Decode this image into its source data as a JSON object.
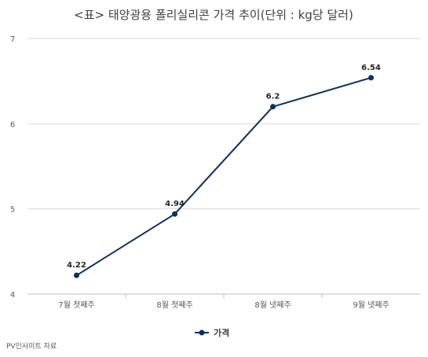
{
  "chart_data": {
    "type": "line",
    "title": "<표> 태양광용 폴리실리콘 가격 추이(단위 : kg당 달러)",
    "xlabel": "",
    "ylabel": "",
    "categories": [
      "7월 첫째주",
      "8월 첫째주",
      "8월 넷째주",
      "9월 넷째주"
    ],
    "series": [
      {
        "name": "가격",
        "values": [
          4.22,
          4.94,
          6.2,
          6.54
        ],
        "labels": [
          "4.22",
          "4.94",
          "6.2",
          "6.54"
        ],
        "color": "#0b2f62"
      }
    ],
    "ylim": [
      4,
      7
    ],
    "yticks": [
      4,
      5,
      6,
      7
    ],
    "ytick_labels": [
      "4",
      "5",
      "6",
      "7"
    ],
    "grid": true,
    "legend_position": "bottom"
  },
  "footer": {
    "source": "PV인사이트 자료"
  },
  "colors": {
    "series": "#0b2f62",
    "grid": "#d9d9d9",
    "axis": "#bfbfbf",
    "text": "#595959"
  }
}
